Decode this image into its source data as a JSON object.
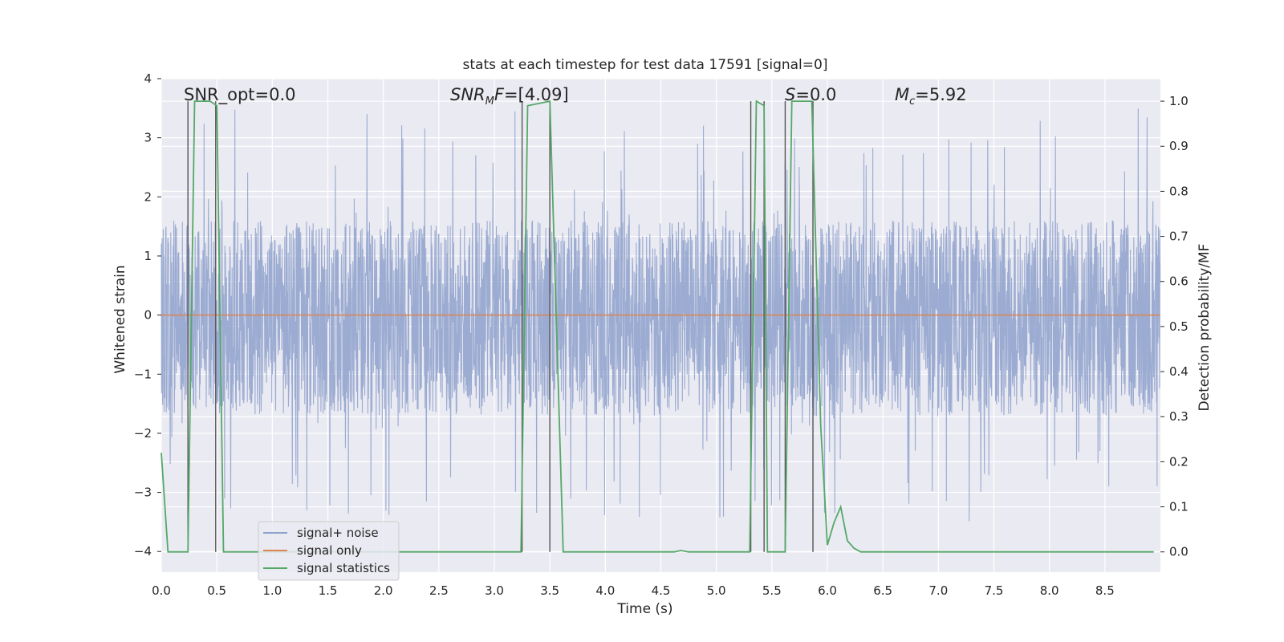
{
  "chart_data": {
    "type": "line",
    "title": "stats at each timestep for test data 17591 [signal=0]",
    "xlabel": "Time (s)",
    "ylabel_left": "Whitened strain",
    "ylabel_right": "Detection probability/MF",
    "xlim": [
      0,
      9.0
    ],
    "ylim_left": [
      -4.35,
      4.0
    ],
    "ylim_right": [
      -0.045,
      1.05
    ],
    "x_ticks": [
      0.0,
      0.5,
      1.0,
      1.5,
      2.0,
      2.5,
      3.0,
      3.5,
      4.0,
      4.5,
      5.0,
      5.5,
      6.0,
      6.5,
      7.0,
      7.5,
      8.0,
      8.5
    ],
    "x_tick_labels": [
      "0.0",
      "0.5",
      "1.0",
      "1.5",
      "2.0",
      "2.5",
      "3.0",
      "3.5",
      "4.0",
      "4.5",
      "5.0",
      "5.5",
      "6.0",
      "6.5",
      "7.0",
      "7.5",
      "8.0",
      "8.5"
    ],
    "y_left_ticks": [
      4,
      3,
      2,
      1,
      0,
      -1,
      -2,
      -3,
      -4
    ],
    "y_left_tick_labels": [
      "4",
      "3",
      "2",
      "1",
      "0",
      "−1",
      "−2",
      "−3",
      "−4"
    ],
    "y_right_ticks": [
      1.0,
      0.9,
      0.8,
      0.7,
      0.6,
      0.5,
      0.4,
      0.3,
      0.2,
      0.1,
      0.0
    ],
    "y_right_tick_labels": [
      "1.0",
      "0.9",
      "0.8",
      "0.7",
      "0.6",
      "0.5",
      "0.4",
      "0.3",
      "0.2",
      "0.1",
      "0.0"
    ],
    "grid": true,
    "legend_position": "lower-left",
    "noise_band": {
      "name": "signal+ noise",
      "color": "#8da0cb",
      "typical_range": [
        -1.7,
        1.6
      ],
      "peak_max": 3.6,
      "peak_min": -4.0
    },
    "series": [
      {
        "name": "signal only",
        "color": "#dd8452",
        "x": [
          0.0,
          9.0
        ],
        "y": [
          0.0,
          0.0
        ]
      },
      {
        "name": "signal statistics",
        "color": "#55a868",
        "axis": "right",
        "x": [
          0.0,
          0.06,
          0.24,
          0.3,
          0.44,
          0.5,
          0.56,
          3.24,
          3.3,
          3.5,
          3.62,
          4.62,
          4.68,
          4.75,
          5.3,
          5.36,
          5.43,
          5.46,
          5.62,
          5.68,
          5.86,
          5.94,
          6.0,
          6.06,
          6.12,
          6.18,
          6.24,
          6.3,
          6.4,
          8.94
        ],
        "y": [
          0.22,
          0.0,
          0.0,
          1.0,
          1.0,
          0.99,
          0.0,
          0.0,
          0.99,
          1.0,
          0.0,
          0.0,
          0.003,
          0.0,
          0.0,
          1.0,
          0.99,
          0.0,
          0.0,
          1.0,
          1.0,
          0.28,
          0.015,
          0.065,
          0.1,
          0.025,
          0.008,
          0.0,
          0.0,
          0.0
        ]
      }
    ],
    "vertical_markers_x": [
      0.24,
      0.49,
      3.25,
      3.5,
      5.31,
      5.43,
      5.62,
      5.87
    ],
    "annotations": [
      {
        "text": "SNR_opt=0.0",
        "x": 0.2
      },
      {
        "text": "SNR_MF=[4.09]",
        "x": 2.6
      },
      {
        "text": "S=0.0",
        "x": 5.6
      },
      {
        "text": "M_c=5.92",
        "x": 6.6
      }
    ]
  }
}
